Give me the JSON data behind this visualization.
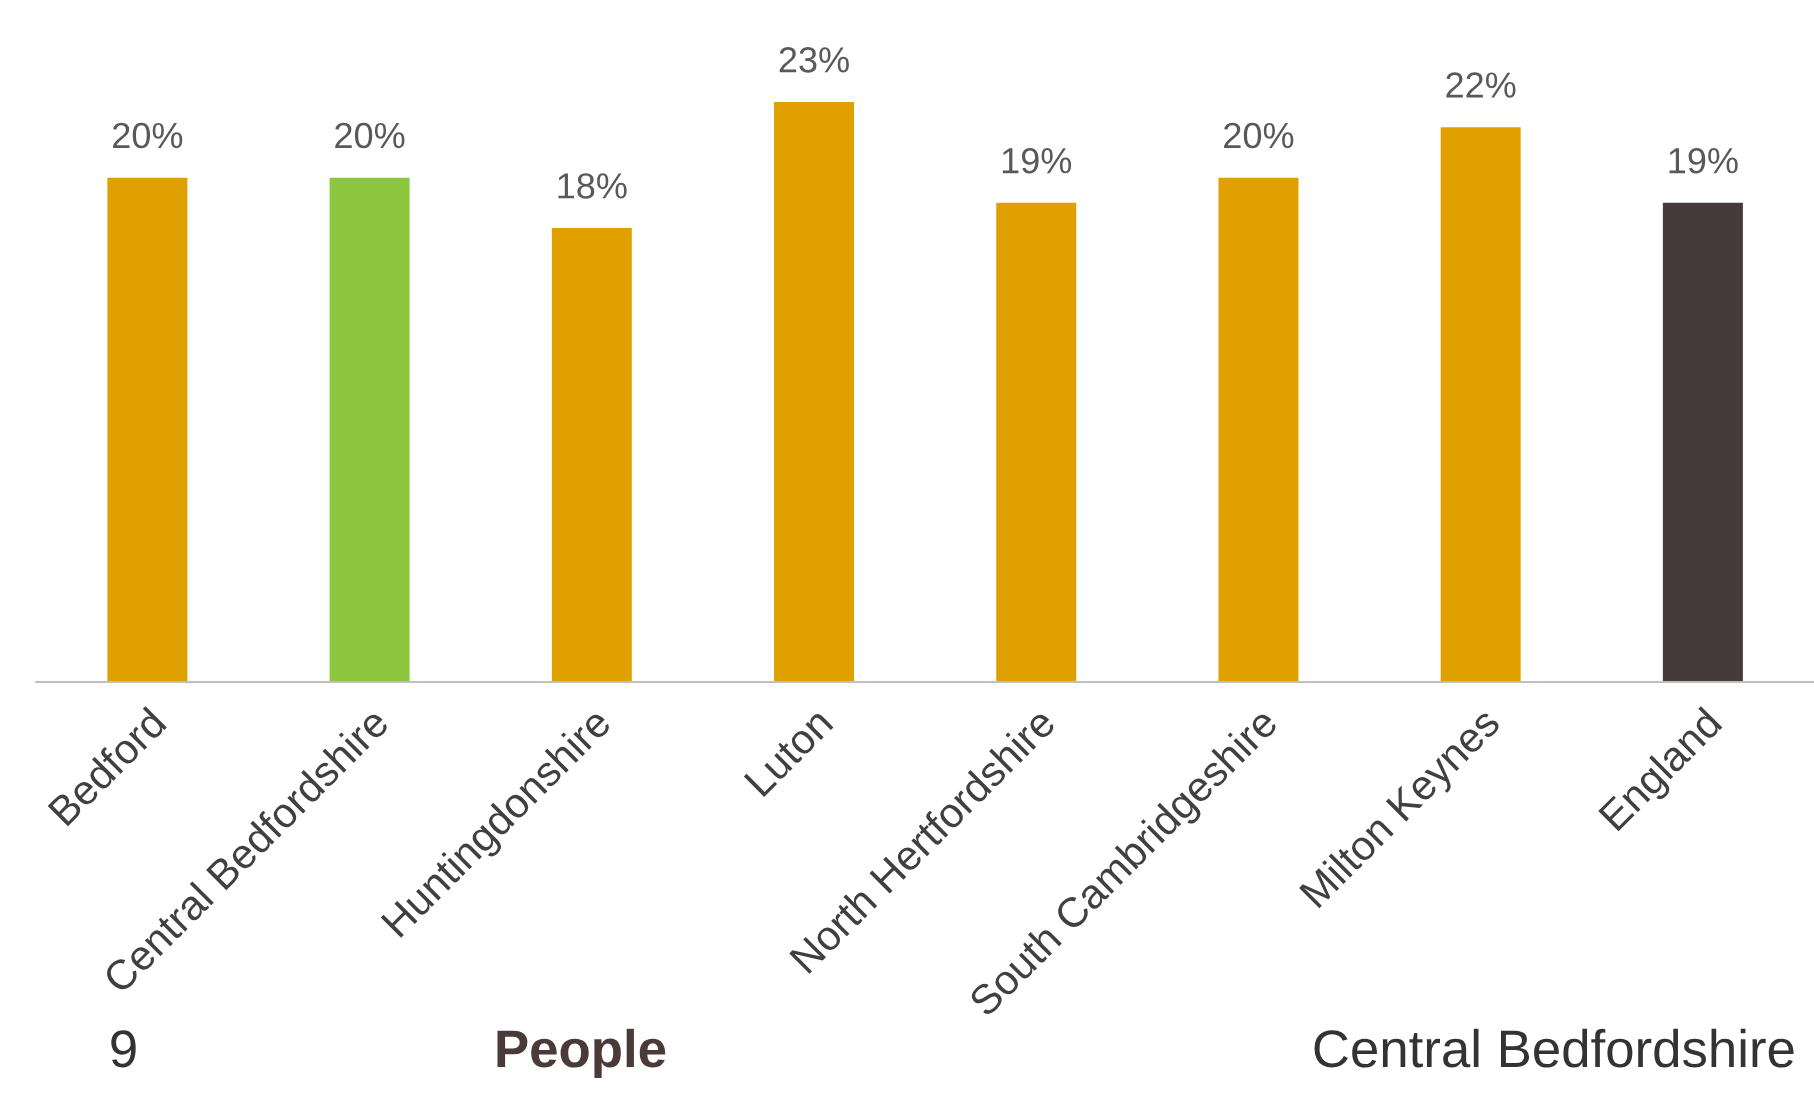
{
  "chart_data": {
    "type": "bar",
    "categories": [
      "Bedford",
      "Central Bedfordshire",
      "Huntingdonshire",
      "Luton",
      "North Hertfordshire",
      "South Cambridgeshire",
      "Milton Keynes",
      "England"
    ],
    "values": [
      20,
      20,
      18,
      23,
      19,
      20,
      22,
      19
    ],
    "value_labels": [
      "20%",
      "20%",
      "18%",
      "23%",
      "19%",
      "20%",
      "22%",
      "19%"
    ],
    "colors": [
      "#e0a000",
      "#8cc63f",
      "#e0a000",
      "#e0a000",
      "#e0a000",
      "#e0a000",
      "#e0a000",
      "#473a3a"
    ],
    "annotations": [
      "9",
      "People",
      "Central Bedfordshire"
    ],
    "grid": false,
    "legend": false,
    "tick_labels": "x"
  }
}
